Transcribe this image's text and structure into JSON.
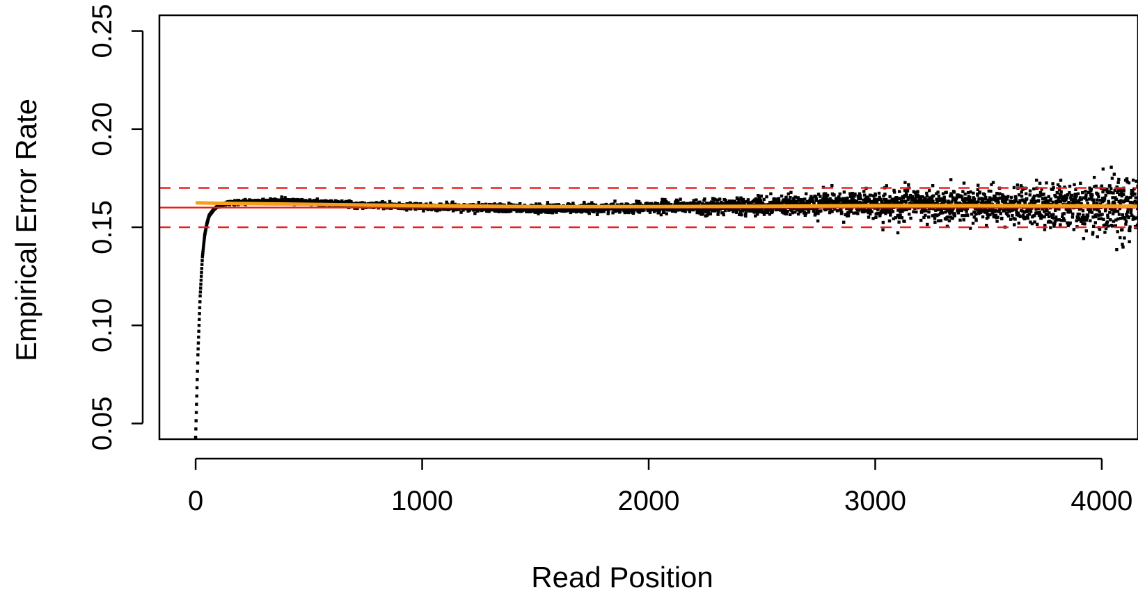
{
  "chart_data": {
    "type": "scatter",
    "title": "",
    "xlabel": "Read Position",
    "ylabel": "Empirical Error Rate",
    "xlim": [
      -160,
      4160
    ],
    "ylim": [
      0.042,
      0.258
    ],
    "x_ticks": [
      0,
      1000,
      2000,
      3000,
      4000
    ],
    "x_tick_labels": [
      "0",
      "1000",
      "2000",
      "3000",
      "4000"
    ],
    "y_ticks": [
      0.05,
      0.1,
      0.15,
      0.2,
      0.25
    ],
    "y_tick_labels": [
      "0.05",
      "0.10",
      "0.15",
      "0.20",
      "0.25"
    ],
    "grid": false,
    "legend": "none",
    "colors": {
      "points": "#000000",
      "reference_line": "#e8211d",
      "bounds": "#e8211d",
      "smooth_fit": "#f5a01a"
    },
    "reference_lines": [
      {
        "y": 0.16,
        "style": "solid",
        "color": "#e8211d"
      },
      {
        "y": 0.17,
        "style": "dashed",
        "color": "#e8211d"
      },
      {
        "y": 0.15,
        "style": "dashed",
        "color": "#e8211d"
      }
    ],
    "smooth_fit": {
      "color": "#f5a01a",
      "x": [
        0,
        100,
        500,
        1000,
        1500,
        2000,
        2500,
        3000,
        3500,
        4000,
        4160
      ],
      "y": [
        0.1625,
        0.1622,
        0.1617,
        0.161,
        0.1605,
        0.1605,
        0.1607,
        0.161,
        0.161,
        0.1608,
        0.1607
      ]
    },
    "series": [
      {
        "points_per_position": 1,
        "x_range": [
          0,
          4160
        ],
        "trend": {
          "description_x": [
            0,
            10,
            20,
            30,
            40,
            50,
            60,
            80,
            100,
            150,
            400,
            700,
            1000,
            1500,
            2000,
            2500,
            3000,
            3500,
            4000,
            4160
          ],
          "y": [
            0.043,
            0.085,
            0.115,
            0.135,
            0.146,
            0.152,
            0.156,
            0.159,
            0.161,
            0.1625,
            0.1635,
            0.1615,
            0.1605,
            0.1595,
            0.16,
            0.161,
            0.162,
            0.161,
            0.16,
            0.16
          ]
        },
        "scatter_sd": {
          "x": [
            0,
            300,
            1000,
            2000,
            2500,
            3000,
            3500,
            3800,
            4160
          ],
          "sd": [
            0.0004,
            0.0006,
            0.0008,
            0.0013,
            0.0022,
            0.0033,
            0.0045,
            0.0062,
            0.0085
          ]
        }
      }
    ]
  }
}
